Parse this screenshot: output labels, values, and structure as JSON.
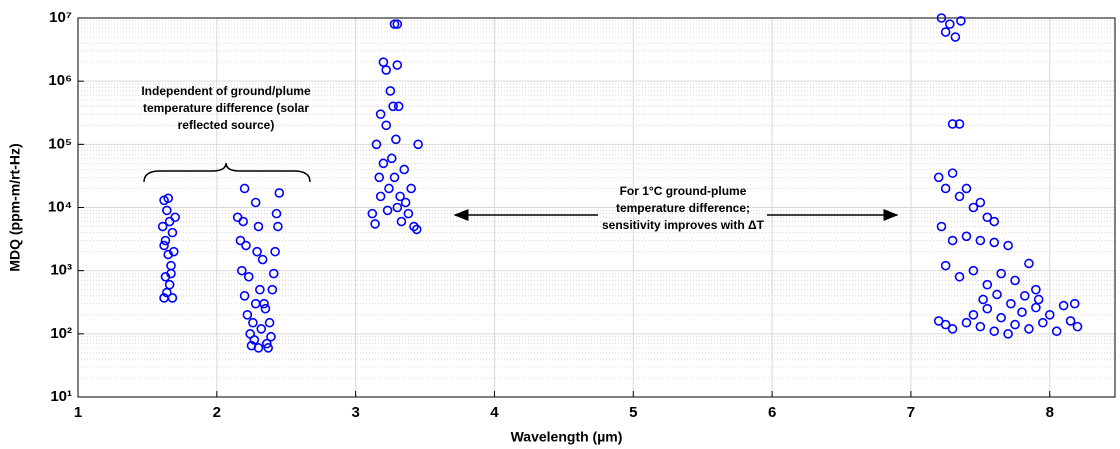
{
  "chart_data": {
    "type": "scatter",
    "xlabel": "Wavelength (µm)",
    "ylabel": "MDQ (ppm-m/rt-Hz)",
    "xlim": [
      1,
      8.47
    ],
    "ylim": [
      10,
      10000000
    ],
    "log_y": true,
    "grid": true,
    "minor_grid": true,
    "xticks": [
      1,
      2,
      3,
      4,
      5,
      6,
      7,
      8
    ],
    "yticks": [
      {
        "value": 10,
        "label": "10¹"
      },
      {
        "value": 100,
        "label": "10²"
      },
      {
        "value": 1000,
        "label": "10³"
      },
      {
        "value": 10000,
        "label": "10⁴"
      },
      {
        "value": 100000,
        "label": "10⁵"
      },
      {
        "value": 1000000,
        "label": "10⁶"
      },
      {
        "value": 10000000,
        "label": "10⁷"
      }
    ],
    "annotations": [
      {
        "lines": [
          "Independent of ground/plume",
          "temperature difference (solar",
          "reflected source)"
        ]
      },
      {
        "lines": [
          "For 1°C ground-plume",
          "temperature difference;",
          "sensitivity improves with ΔT"
        ]
      }
    ],
    "series": [
      {
        "color": "#0000ff",
        "x": [
          1.62,
          1.64,
          1.66,
          1.68,
          1.62,
          1.65,
          1.67,
          1.63,
          1.66,
          1.64,
          1.62,
          1.68,
          1.7,
          1.61,
          1.69,
          1.65,
          1.63,
          1.67,
          2.15,
          2.17,
          2.18,
          2.2,
          2.2,
          2.22,
          2.24,
          2.25,
          2.27,
          2.3,
          2.32,
          2.34,
          2.36,
          2.38,
          2.4,
          2.42,
          2.43,
          2.45,
          2.44,
          2.41,
          2.37,
          2.33,
          2.31,
          2.29,
          2.28,
          2.26,
          2.23,
          2.21,
          2.19,
          2.35,
          2.39,
          2.28,
          2.3,
          3.28,
          3.3,
          3.2,
          3.22,
          3.25,
          3.27,
          3.3,
          3.18,
          3.15,
          3.2,
          3.22,
          3.24,
          3.26,
          3.28,
          3.3,
          3.32,
          3.35,
          3.38,
          3.42,
          3.4,
          3.44,
          3.12,
          3.14,
          3.18,
          3.45,
          3.36,
          3.33,
          3.17,
          3.29,
          3.23,
          3.31,
          7.22,
          7.28,
          7.32,
          7.36,
          7.25,
          7.35,
          7.3,
          7.2,
          7.25,
          7.3,
          7.35,
          7.4,
          7.45,
          7.5,
          7.55,
          7.6,
          7.22,
          7.3,
          7.4,
          7.5,
          7.6,
          7.7,
          7.25,
          7.35,
          7.45,
          7.55,
          7.65,
          7.75,
          7.85,
          7.9,
          7.2,
          7.25,
          7.3,
          7.4,
          7.45,
          7.5,
          7.55,
          7.6,
          7.65,
          7.7,
          7.75,
          7.8,
          7.85,
          7.9,
          7.95,
          8.0,
          8.05,
          8.1,
          8.15,
          8.2,
          8.18,
          7.92,
          7.82,
          7.72,
          7.62,
          7.52
        ],
        "values": [
          13000,
          9000,
          6000,
          4000,
          2500,
          1800,
          1200,
          800,
          600,
          450,
          370,
          370,
          7000,
          5000,
          2000,
          14000,
          3000,
          900,
          7000,
          3000,
          1000,
          20000,
          400,
          200,
          100,
          65,
          80,
          60,
          120,
          300,
          70,
          150,
          500,
          2000,
          8000,
          17000,
          5000,
          900,
          60,
          1500,
          500,
          2000,
          300,
          150,
          800,
          2500,
          6000,
          250,
          90,
          12000,
          5000,
          8000000,
          8000000,
          2000000,
          1500000,
          700000,
          400000,
          1800000,
          300000,
          100000,
          50000,
          200000,
          20000,
          60000,
          30000,
          10000,
          15000,
          40000,
          8000,
          5000,
          20000,
          4500,
          8000,
          5500,
          15000,
          100000,
          12000,
          6000,
          30000,
          120000,
          9000,
          400000,
          10000000,
          8000000,
          5000000,
          9000000,
          6000000,
          210000,
          210000,
          30000,
          20000,
          35000,
          15000,
          20000,
          10000,
          12000,
          7000,
          6000,
          5000,
          3000,
          3500,
          3000,
          2800,
          2500,
          1200,
          800,
          1000,
          600,
          900,
          700,
          1300,
          500,
          160,
          140,
          120,
          150,
          200,
          130,
          250,
          110,
          180,
          100,
          140,
          220,
          120,
          260,
          150,
          200,
          110,
          280,
          160,
          130,
          300,
          350,
          400,
          300,
          420,
          350
        ]
      }
    ]
  }
}
